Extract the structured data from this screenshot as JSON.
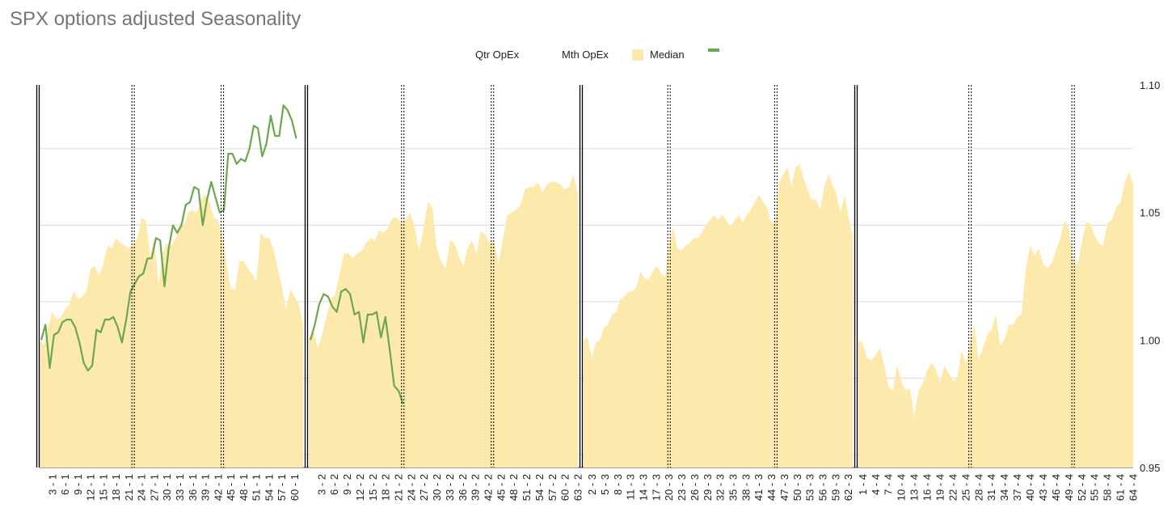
{
  "chart_data": {
    "type": "area",
    "title": "SPX options adjusted Seasonality",
    "legend": {
      "position": "top",
      "items": [
        {
          "label": "Qtr OpEx",
          "kind": "none",
          "color": "#000000"
        },
        {
          "label": "Mth OpEx",
          "kind": "none",
          "color": "#000000"
        },
        {
          "label": "Median",
          "kind": "area",
          "color": "#fde9ac"
        },
        {
          "label": "",
          "kind": "line",
          "color": "#6aa84f"
        }
      ]
    },
    "y_axis": {
      "position": "right",
      "min": 0.95,
      "max": 1.1,
      "tick_labels": [
        {
          "value": 1.1,
          "label": "1.10"
        },
        {
          "value": 1.05,
          "label": "1.05"
        },
        {
          "value": 1.0,
          "label": "1.00"
        },
        {
          "value": 0.95,
          "label": "0.95"
        }
      ],
      "gridlines": [
        0.955,
        0.985,
        1.015,
        1.045,
        1.075
      ],
      "grid": true
    },
    "x_axis": {
      "label_every": 3,
      "label_rotation": -90
    },
    "colors": {
      "median": "#fde9ac",
      "current": "#6aa84f",
      "grid": "#d9d9d9",
      "separator": "#000000"
    },
    "quarter_separators": [
      1,
      2,
      3,
      4
    ],
    "month_separators": [
      {
        "quarter": 1,
        "days": [
          22,
          43
        ]
      },
      {
        "quarter": 2,
        "days": [
          22,
          43
        ]
      },
      {
        "quarter": 3,
        "days": [
          20,
          45
        ]
      },
      {
        "quarter": 4,
        "days": [
          26,
          50
        ]
      }
    ],
    "quarters": [
      {
        "quarter": 1,
        "days": 62,
        "tick_labels": [
          "3 - 1",
          "6 - 1",
          "9 - 1",
          "12 - 1",
          "15 - 1",
          "18 - 1",
          "21 - 1",
          "24 - 1",
          "27 - 1",
          "30 - 1",
          "33 - 1",
          "36 - 1",
          "39 - 1",
          "42 - 1",
          "45 - 1",
          "48 - 1",
          "51 - 1",
          "54 - 1",
          "57 - 1",
          "60 - 1"
        ],
        "median": [
          1.0,
          0.998,
          1.005,
          1.011,
          1.008,
          1.009,
          1.012,
          1.014,
          1.019,
          1.016,
          1.017,
          1.019,
          1.028,
          1.029,
          1.025,
          1.03,
          1.037,
          1.036,
          1.04,
          1.038,
          1.037,
          1.036,
          1.037,
          1.04,
          1.048,
          1.047,
          1.033,
          1.04,
          1.022,
          1.034,
          1.038,
          1.037,
          1.04,
          1.046,
          1.045,
          1.05,
          1.051,
          1.05,
          1.055,
          1.057,
          1.054,
          1.048,
          1.047,
          1.041,
          1.03,
          1.02,
          1.02,
          1.031,
          1.031,
          1.028,
          1.026,
          1.023,
          1.042,
          1.04,
          1.04,
          1.036,
          1.028,
          1.021,
          1.012,
          1.02,
          1.017,
          1.014,
          1.006
        ],
        "current": [
          1.0,
          1.006,
          0.989,
          1.002,
          1.003,
          1.007,
          1.008,
          1.008,
          1.005,
          0.999,
          0.991,
          0.988,
          0.99,
          1.004,
          1.003,
          1.008,
          1.008,
          1.009,
          1.005,
          0.999,
          1.008,
          1.019,
          1.022,
          1.025,
          1.026,
          1.032,
          1.032,
          1.04,
          1.039,
          1.021,
          1.036,
          1.045,
          1.042,
          1.045,
          1.053,
          1.054,
          1.06,
          1.059,
          1.045,
          1.055,
          1.062,
          1.056,
          1.05,
          1.051,
          1.073,
          1.073,
          1.069,
          1.071,
          1.07,
          1.075,
          1.084,
          1.083,
          1.072,
          1.077,
          1.088,
          1.08,
          1.08,
          1.092,
          1.09,
          1.086,
          1.079
        ]
      },
      {
        "quarter": 2,
        "days": 63,
        "tick_labels": [
          "3 - 2",
          "6 - 2",
          "9 - 2",
          "12 - 2",
          "15 - 2",
          "18 - 2",
          "21 - 2",
          "24 - 2",
          "27 - 2",
          "30 - 2",
          "33 - 2",
          "36 - 2",
          "39 - 2",
          "42 - 2",
          "45 - 2",
          "48 - 2",
          "51 - 2",
          "54 - 2",
          "57 - 2",
          "60 - 2",
          "63 - 2"
        ],
        "median": [
          1.0,
          1.004,
          0.997,
          1.002,
          1.009,
          1.016,
          1.018,
          1.026,
          1.034,
          1.034,
          1.032,
          1.034,
          1.035,
          1.038,
          1.04,
          1.039,
          1.043,
          1.042,
          1.044,
          1.048,
          1.048,
          1.046,
          1.047,
          1.05,
          1.044,
          1.035,
          1.044,
          1.054,
          1.052,
          1.036,
          1.031,
          1.028,
          1.039,
          1.038,
          1.033,
          1.029,
          1.036,
          1.039,
          1.034,
          1.043,
          1.041,
          1.038,
          1.039,
          1.03,
          1.04,
          1.049,
          1.05,
          1.051,
          1.053,
          1.059,
          1.06,
          1.06,
          1.062,
          1.058,
          1.061,
          1.062,
          1.062,
          1.061,
          1.059,
          1.06,
          1.065,
          1.057
        ],
        "current": [
          1.0,
          1.006,
          1.014,
          1.018,
          1.017,
          1.013,
          1.011,
          1.019,
          1.02,
          1.018,
          1.01,
          1.011,
          0.999,
          1.01,
          1.01,
          1.011,
          1.001,
          1.009,
          0.996,
          0.982,
          0.98,
          0.975
        ]
      },
      {
        "quarter": 3,
        "days": 63,
        "tick_labels": [
          "2 - 3",
          "5 - 3",
          "8 - 3",
          "11 - 3",
          "14 - 3",
          "17 - 3",
          "20 - 3",
          "23 - 3",
          "26 - 3",
          "29 - 3",
          "32 - 3",
          "35 - 3",
          "38 - 3",
          "41 - 3",
          "44 - 3",
          "47 - 3",
          "50 - 3",
          "53 - 3",
          "56 - 3",
          "59 - 3",
          "62 - 3"
        ],
        "median": [
          1.0,
          1.001,
          0.993,
          0.999,
          1.0,
          1.005,
          1.006,
          1.01,
          1.011,
          1.016,
          1.017,
          1.019,
          1.019,
          1.021,
          1.027,
          1.024,
          1.024,
          1.027,
          1.029,
          1.026,
          1.025,
          1.038,
          1.044,
          1.036,
          1.035,
          1.037,
          1.038,
          1.04,
          1.04,
          1.042,
          1.045,
          1.047,
          1.049,
          1.047,
          1.049,
          1.047,
          1.044,
          1.047,
          1.049,
          1.046,
          1.049,
          1.051,
          1.054,
          1.057,
          1.054,
          1.052,
          1.046,
          1.046,
          1.062,
          1.065,
          1.068,
          1.06,
          1.068,
          1.069,
          1.063,
          1.059,
          1.055,
          1.055,
          1.051,
          1.06,
          1.065,
          1.061,
          1.057,
          1.05,
          1.057,
          1.048,
          1.041
        ]
      },
      {
        "quarter": 4,
        "days": 64,
        "tick_labels": [
          "1 - 4",
          "4 - 4",
          "7 - 4",
          "10 - 4",
          "13 - 4",
          "16 - 4",
          "19 - 4",
          "22 - 4",
          "25 - 4",
          "28 - 4",
          "31 - 4",
          "34 - 4",
          "37 - 4",
          "40 - 4",
          "43 - 4",
          "46 - 4",
          "49 - 4",
          "52 - 4",
          "55 - 4",
          "58 - 4",
          "61 - 4",
          "64 - 4"
        ],
        "median": [
          1.0,
          0.999,
          0.993,
          0.992,
          0.994,
          0.997,
          0.99,
          0.982,
          0.98,
          0.99,
          0.984,
          0.98,
          0.981,
          0.97,
          0.98,
          0.983,
          0.988,
          0.991,
          0.989,
          0.983,
          0.99,
          0.987,
          0.984,
          0.985,
          0.996,
          0.991,
          0.999,
          1.006,
          0.992,
          0.997,
          1.002,
          1.004,
          1.01,
          0.998,
          1.0,
          1.006,
          1.006,
          1.009,
          1.01,
          1.028,
          1.037,
          1.033,
          1.036,
          1.03,
          1.028,
          1.03,
          1.035,
          1.04,
          1.047,
          1.044,
          1.032,
          1.029,
          1.038,
          1.046,
          1.046,
          1.041,
          1.038,
          1.037,
          1.046,
          1.047,
          1.052,
          1.054,
          1.061,
          1.066,
          1.061
        ]
      }
    ]
  }
}
